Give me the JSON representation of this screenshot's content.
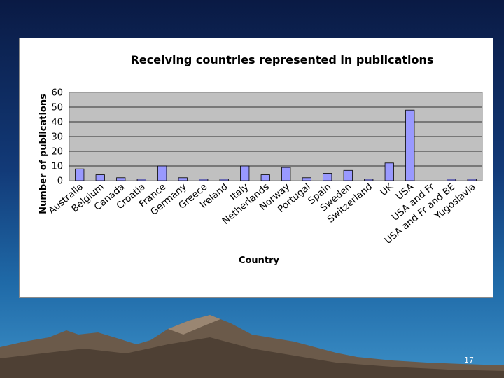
{
  "slide": {
    "number": "17"
  },
  "chart_data": {
    "type": "bar",
    "title": "Receiving countries represented in publications",
    "xlabel": "Country",
    "ylabel": "Number of publications",
    "ylim": [
      0,
      60
    ],
    "yticks": [
      "0",
      "10",
      "20",
      "30",
      "40",
      "50",
      "60"
    ],
    "grid": true,
    "legend": "none",
    "plot_background": "#c0c0c0",
    "bar_color": "#9999ff",
    "categories": [
      "Australia",
      "Belgium",
      "Canada",
      "Croatia",
      "France",
      "Germany",
      "Greece",
      "Ireland",
      "Italy",
      "Netherlands",
      "Norway",
      "Portugal",
      "Spain",
      "Sweden",
      "Switzerland",
      "UK",
      "USA",
      "USA and Fr",
      "USA and Fr and BE",
      "Yugoslavia"
    ],
    "values": [
      8,
      4,
      2,
      1,
      10,
      2,
      1,
      1,
      10,
      4,
      9,
      2,
      5,
      7,
      1,
      12,
      48,
      0,
      1,
      1
    ]
  }
}
